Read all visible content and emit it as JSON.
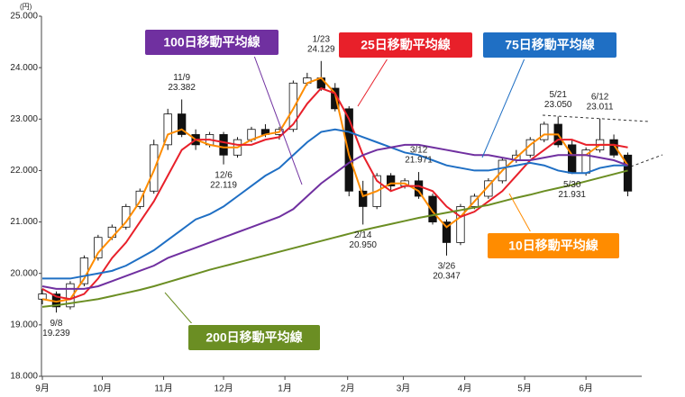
{
  "chart_data": {
    "type": "candlestick",
    "y_unit": "(円)",
    "xlim": [
      0,
      43
    ],
    "xticks": [
      {
        "value": 0,
        "label": "9月"
      },
      {
        "value": 4.3,
        "label": "10月"
      },
      {
        "value": 8.7,
        "label": "11月"
      },
      {
        "value": 13,
        "label": "12月"
      },
      {
        "value": 17.4,
        "label": "1月"
      },
      {
        "value": 21.9,
        "label": "2月"
      },
      {
        "value": 25.9,
        "label": "3月"
      },
      {
        "value": 30.3,
        "label": "4月"
      },
      {
        "value": 34.6,
        "label": "5月"
      },
      {
        "value": 39,
        "label": "6月"
      }
    ],
    "ylim": [
      18000,
      25000
    ],
    "yticks": [
      {
        "value": 18000,
        "label": "18.000"
      },
      {
        "value": 19000,
        "label": "19.000"
      },
      {
        "value": 20000,
        "label": "20.000"
      },
      {
        "value": 21000,
        "label": "21.000"
      },
      {
        "value": 22000,
        "label": "22.000"
      },
      {
        "value": 23000,
        "label": "23.000"
      },
      {
        "value": 24000,
        "label": "24.000"
      },
      {
        "value": 25000,
        "label": "25.000"
      }
    ],
    "grid": false,
    "up_color": "#ffffff",
    "down_color": "#111111",
    "x": [
      0,
      1,
      2,
      3,
      4,
      5,
      6,
      7,
      8,
      9,
      10,
      11,
      12,
      13,
      14,
      15,
      16,
      17,
      18,
      19,
      20,
      21,
      22,
      23,
      24,
      25,
      26,
      27,
      28,
      29,
      30,
      31,
      32,
      33,
      34,
      35,
      36,
      37,
      38,
      39,
      40,
      41,
      42
    ],
    "open": [
      19500,
      19600,
      19350,
      19800,
      20300,
      20700,
      20900,
      21300,
      21600,
      22500,
      23100,
      22700,
      22500,
      22700,
      22300,
      22600,
      22800,
      22700,
      22800,
      23700,
      23800,
      23600,
      23200,
      21600,
      21300,
      21900,
      21700,
      21800,
      21500,
      21000,
      20600,
      21300,
      21500,
      21800,
      22200,
      22300,
      22600,
      22900,
      22500,
      21950,
      22400,
      22600,
      22300
    ],
    "high": [
      19700,
      19650,
      19850,
      20350,
      20750,
      20950,
      21350,
      21650,
      22600,
      23200,
      23382,
      22800,
      22750,
      22750,
      22650,
      22850,
      22900,
      22850,
      23750,
      23900,
      24129,
      23700,
      23250,
      21800,
      21950,
      21950,
      21850,
      21971,
      21550,
      21050,
      21350,
      21550,
      21850,
      22250,
      22400,
      22650,
      22950,
      23050,
      22600,
      22450,
      23011,
      22700,
      22350
    ],
    "low": [
      19400,
      19239,
      19300,
      19750,
      20250,
      20650,
      20850,
      21250,
      21550,
      22400,
      22650,
      22400,
      22450,
      22119,
      22250,
      22550,
      22650,
      22600,
      22750,
      23650,
      23550,
      23150,
      21500,
      20950,
      21250,
      21600,
      21650,
      21450,
      20950,
      20347,
      20550,
      21250,
      21450,
      21750,
      22150,
      22250,
      22550,
      22450,
      21931,
      21900,
      22350,
      22250,
      21500
    ],
    "close": [
      19600,
      19350,
      19800,
      20300,
      20700,
      20900,
      21300,
      21600,
      22500,
      23100,
      22700,
      22500,
      22700,
      22300,
      22600,
      22800,
      22700,
      22800,
      23700,
      23800,
      23600,
      23200,
      21600,
      21300,
      21900,
      21700,
      21800,
      21500,
      21000,
      20600,
      21300,
      21500,
      21800,
      22200,
      22300,
      22600,
      22900,
      22500,
      21950,
      22400,
      22600,
      22300,
      21600
    ],
    "series": [
      {
        "name": "10日移動平均線",
        "color": "#ff8c00",
        "values": [
          19500,
          19450,
          19500,
          19900,
          20400,
          20700,
          21000,
          21400,
          22000,
          22700,
          22800,
          22600,
          22500,
          22450,
          22450,
          22600,
          22700,
          22750,
          23200,
          23700,
          23800,
          23500,
          22300,
          21500,
          21600,
          21750,
          21750,
          21600,
          21200,
          20900,
          21100,
          21400,
          21700,
          22000,
          22250,
          22500,
          22700,
          22700,
          22300,
          22300,
          22500,
          22500,
          22100
        ]
      },
      {
        "name": "25日移動平均線",
        "color": "#e8202a",
        "values": [
          19700,
          19550,
          19500,
          19600,
          19900,
          20300,
          20600,
          21000,
          21400,
          21900,
          22400,
          22600,
          22600,
          22550,
          22500,
          22500,
          22600,
          22650,
          22900,
          23300,
          23600,
          23500,
          23000,
          22300,
          21800,
          21600,
          21700,
          21700,
          21600,
          21300,
          21100,
          21200,
          21400,
          21600,
          21900,
          22200,
          22400,
          22600,
          22600,
          22500,
          22500,
          22500,
          22450
        ]
      },
      {
        "name": "75日移動平均線",
        "color": "#1f6fc4",
        "values": [
          19900,
          19900,
          19900,
          19950,
          20000,
          20050,
          20150,
          20300,
          20450,
          20650,
          20850,
          21050,
          21150,
          21300,
          21500,
          21700,
          21900,
          22050,
          22300,
          22550,
          22750,
          22800,
          22750,
          22650,
          22550,
          22450,
          22350,
          22300,
          22200,
          22100,
          22050,
          22000,
          22000,
          22050,
          22100,
          22150,
          22100,
          22000,
          21950,
          21950,
          22050,
          22100,
          22100
        ]
      },
      {
        "name": "100日移動平均線",
        "color": "#7030a0",
        "values": [
          19750,
          19700,
          19700,
          19700,
          19750,
          19850,
          19950,
          20050,
          20150,
          20300,
          20400,
          20500,
          20600,
          20700,
          20800,
          20900,
          21000,
          21100,
          21250,
          21500,
          21750,
          21950,
          22150,
          22300,
          22400,
          22450,
          22500,
          22500,
          22450,
          22400,
          22350,
          22300,
          22300,
          22250,
          22200,
          22200,
          22250,
          22300,
          22300,
          22300,
          22250,
          22200,
          22100
        ]
      },
      {
        "name": "200日移動平均線",
        "color": "#6b8e23",
        "values": [
          19350,
          19380,
          19420,
          19460,
          19500,
          19560,
          19620,
          19680,
          19750,
          19830,
          19910,
          19990,
          20070,
          20140,
          20210,
          20280,
          20350,
          20420,
          20490,
          20560,
          20630,
          20700,
          20770,
          20840,
          20900,
          20960,
          21020,
          21080,
          21130,
          21180,
          21230,
          21280,
          21330,
          21400,
          21470,
          21530,
          21600,
          21660,
          21720,
          21790,
          21860,
          21930,
          22000
        ]
      }
    ],
    "annotations": [
      {
        "date": "9/8",
        "label": "19.239",
        "value": 19239,
        "x": 1,
        "side": "below"
      },
      {
        "date": "11/9",
        "label": "23.382",
        "value": 23382,
        "x": 10,
        "side": "above"
      },
      {
        "date": "12/6",
        "label": "22.119",
        "value": 22119,
        "x": 13,
        "side": "below"
      },
      {
        "date": "1/23",
        "label": "24.129",
        "value": 24129,
        "x": 20,
        "side": "above"
      },
      {
        "date": "2/14",
        "label": "20.950",
        "value": 20950,
        "x": 23,
        "side": "below"
      },
      {
        "date": "3/12",
        "label": "21.971",
        "value": 21971,
        "x": 27,
        "side": "above"
      },
      {
        "date": "3/26",
        "label": "20.347",
        "value": 20347,
        "x": 29,
        "side": "below"
      },
      {
        "date": "5/21",
        "label": "23.050",
        "value": 23050,
        "x": 37,
        "side": "above"
      },
      {
        "date": "5/30",
        "label": "21.931",
        "value": 21931,
        "x": 38,
        "side": "below"
      },
      {
        "date": "6/12",
        "label": "23.011",
        "value": 23011,
        "x": 40,
        "side": "above"
      }
    ]
  }
}
